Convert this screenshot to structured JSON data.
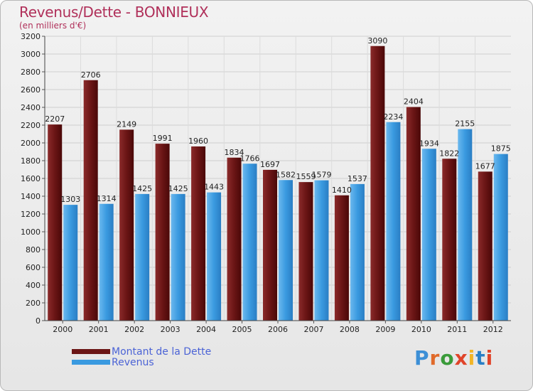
{
  "title": "Revenus/Dette - BONNIEUX",
  "subtitle": "(en milliers d'€)",
  "logo": {
    "text": "Proxiti",
    "letter_colors": [
      "#3c8fd6",
      "#e06a2a",
      "#3a9b3a",
      "#e0442a",
      "#f2b526",
      "#2a7fc6",
      "#e0442a"
    ]
  },
  "legend": [
    {
      "label": "Montant de la Dette",
      "color": "#6a1515"
    },
    {
      "label": "Revenus",
      "color": "#3a9ae0"
    }
  ],
  "chart_data": {
    "type": "bar",
    "title": "Revenus/Dette - BONNIEUX",
    "ylabel": "(en milliers d'€)",
    "xlabel": "",
    "ylim": [
      0,
      3200
    ],
    "ytick_step": 200,
    "grid": true,
    "legend_position": "bottom-left",
    "categories": [
      "2000",
      "2001",
      "2002",
      "2003",
      "2004",
      "2005",
      "2006",
      "2007",
      "2008",
      "2009",
      "2010",
      "2011",
      "2012"
    ],
    "series": [
      {
        "name": "Montant de la Dette",
        "color": "#6a1515",
        "values": [
          2207,
          2706,
          2149,
          1991,
          1960,
          1834,
          1697,
          1559,
          1410,
          3090,
          2404,
          1822,
          1677
        ]
      },
      {
        "name": "Revenus",
        "color": "#3a9ae0",
        "values": [
          1303,
          1314,
          1425,
          1425,
          1443,
          1766,
          1582,
          1579,
          1537,
          2234,
          1934,
          2155,
          1875
        ]
      }
    ]
  }
}
